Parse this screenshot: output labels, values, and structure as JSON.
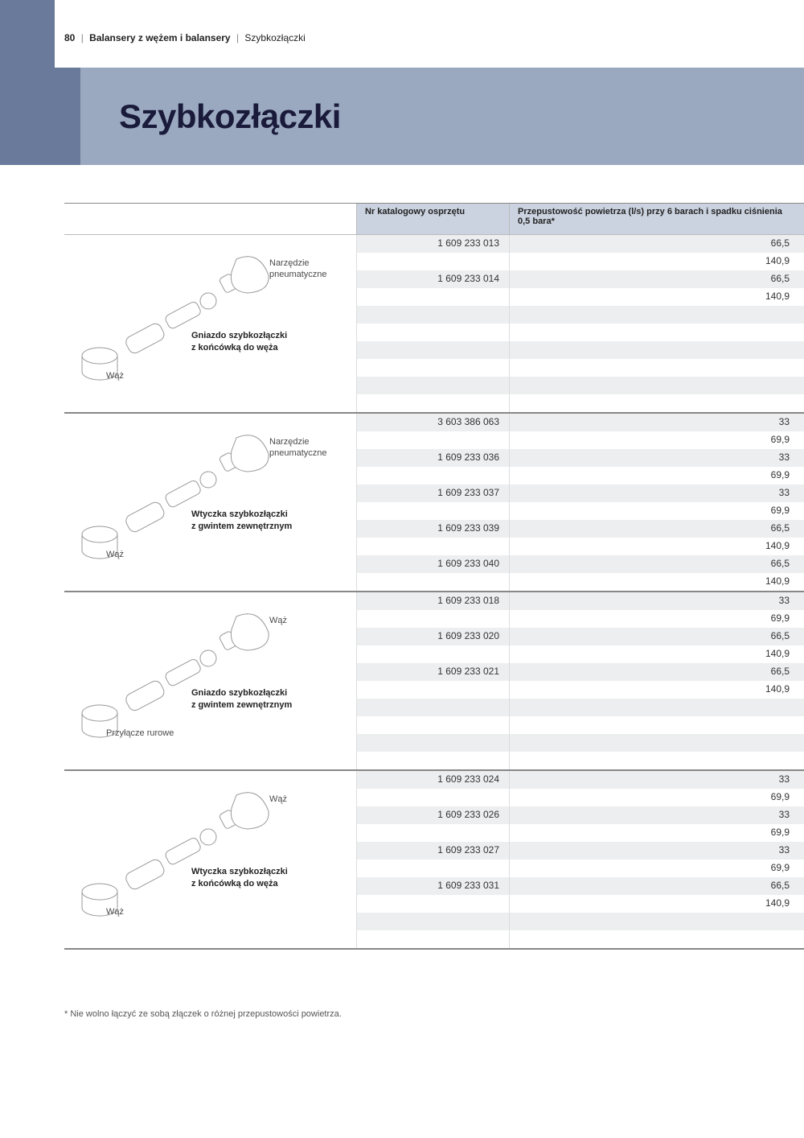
{
  "page_number": "80",
  "breadcrumb": {
    "category": "Balansery z wężem i balansery",
    "current": "Szybkozłączki"
  },
  "hero_title": "Szybkozłączki",
  "columns": {
    "catalog": "Nr katalogowy osprzętu",
    "flow": "Przepustowość powietrza (l/s) przy 6 barach i spadku ciśnienia 0,5 bara*"
  },
  "sections": [
    {
      "labels": {
        "tool": "Narzędzie pneuma-tyczne",
        "hose": "Wąż",
        "title1": "Gniazdo szybkozłączki",
        "title2": "z końcówką do węża"
      },
      "rows": [
        {
          "cat": "1 609 233 013",
          "flow": "66,5"
        },
        {
          "cat": "",
          "flow": "140,9"
        },
        {
          "cat": "1 609 233 014",
          "flow": "66,5"
        },
        {
          "cat": "",
          "flow": "140,9"
        },
        {
          "cat": "",
          "flow": ""
        },
        {
          "cat": "",
          "flow": ""
        },
        {
          "cat": "",
          "flow": ""
        },
        {
          "cat": "",
          "flow": ""
        },
        {
          "cat": "",
          "flow": ""
        },
        {
          "cat": "",
          "flow": ""
        }
      ]
    },
    {
      "labels": {
        "tool": "Narzędzie pneuma-tyczne",
        "hose": "Wąż",
        "title1": "Wtyczka szybkozłączki",
        "title2": "z gwintem zewnętrznym"
      },
      "rows": [
        {
          "cat": "3 603 386 063",
          "flow": "33"
        },
        {
          "cat": "",
          "flow": "69,9"
        },
        {
          "cat": "1 609 233 036",
          "flow": "33"
        },
        {
          "cat": "",
          "flow": "69,9"
        },
        {
          "cat": "1 609 233 037",
          "flow": "33"
        },
        {
          "cat": "",
          "flow": "69,9"
        },
        {
          "cat": "1 609 233 039",
          "flow": "66,5"
        },
        {
          "cat": "",
          "flow": "140,9"
        },
        {
          "cat": "1 609 233 040",
          "flow": "66,5"
        },
        {
          "cat": "",
          "flow": "140,9"
        }
      ]
    },
    {
      "labels": {
        "tool": "Wąż",
        "hose": "Przyłącze rurowe",
        "title1": "Gniazdo szybkozłączki",
        "title2": "z gwintem zewnętrznym"
      },
      "rows": [
        {
          "cat": "1 609 233 018",
          "flow": "33"
        },
        {
          "cat": "",
          "flow": "69,9"
        },
        {
          "cat": "1 609 233 020",
          "flow": "66,5"
        },
        {
          "cat": "",
          "flow": "140,9"
        },
        {
          "cat": "1 609 233 021",
          "flow": "66,5"
        },
        {
          "cat": "",
          "flow": "140,9"
        },
        {
          "cat": "",
          "flow": ""
        },
        {
          "cat": "",
          "flow": ""
        },
        {
          "cat": "",
          "flow": ""
        },
        {
          "cat": "",
          "flow": ""
        }
      ]
    },
    {
      "labels": {
        "tool": "Wąż",
        "hose": "Wąż",
        "title1": "Wtyczka szybkozłączki",
        "title2": "z końcówką do węża"
      },
      "rows": [
        {
          "cat": "1 609 233 024",
          "flow": "33"
        },
        {
          "cat": "",
          "flow": "69,9"
        },
        {
          "cat": "1 609 233 026",
          "flow": "33"
        },
        {
          "cat": "",
          "flow": "69,9"
        },
        {
          "cat": "1 609 233 027",
          "flow": "33"
        },
        {
          "cat": "",
          "flow": "69,9"
        },
        {
          "cat": "1 609 233 031",
          "flow": "66,5"
        },
        {
          "cat": "",
          "flow": "140,9"
        },
        {
          "cat": "",
          "flow": ""
        },
        {
          "cat": "",
          "flow": ""
        }
      ]
    }
  ],
  "footnote": "* Nie wolno łączyć ze sobą złączek o różnej przepustowości powietrza.",
  "colors": {
    "sidebar": "#6a7a9a",
    "hero_bg": "#9aa9c0",
    "header_bg": "#cbd3e0",
    "row_alt": "#eceef0",
    "text": "#333333"
  }
}
